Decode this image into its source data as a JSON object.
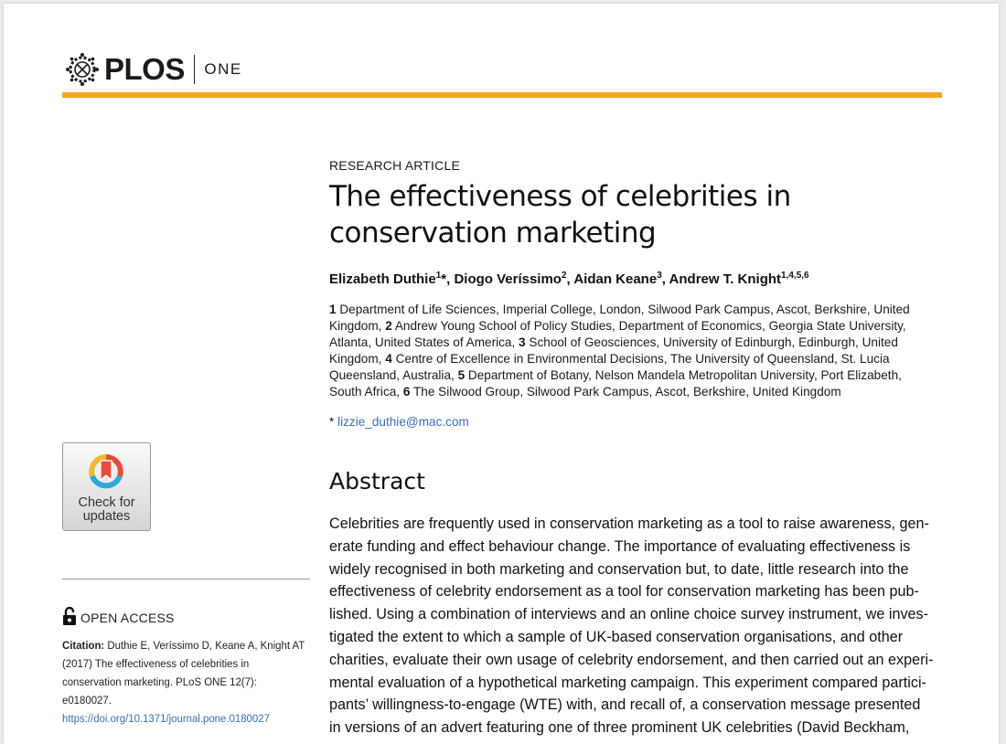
{
  "header": {
    "brand": "PLOS",
    "journal": "ONE",
    "accent_color": "#f5a623"
  },
  "article": {
    "type": "RESEARCH ARTICLE",
    "title_line1": "The effectiveness of celebrities in",
    "title_line2": "conservation marketing",
    "authors": [
      {
        "name": "Elizabeth Duthie",
        "sup": "1",
        "mark": "*"
      },
      {
        "name": "Diogo Veríssimo",
        "sup": "2"
      },
      {
        "name": "Aidan Keane",
        "sup": "3"
      },
      {
        "name": "Andrew T. Knight",
        "sup": "1,4,5,6"
      }
    ],
    "affiliations": [
      {
        "num": "1",
        "text": "Department of Life Sciences, Imperial College, London, Silwood Park Campus, Ascot, Berkshire, United Kingdom,"
      },
      {
        "num": "2",
        "text": "Andrew Young School of Policy Studies, Department of Economics, Georgia State University, Atlanta, United States of America,"
      },
      {
        "num": "3",
        "text": "School of Geosciences, University of Edinburgh, Edinburgh, United Kingdom,"
      },
      {
        "num": "4",
        "text": "Centre of Excellence in Environmental Decisions, The University of Queensland, St. Lucia Queensland, Australia,"
      },
      {
        "num": "5",
        "text": "Department of Botany, Nelson Mandela Metropolitan University, Port Elizabeth, South Africa,"
      },
      {
        "num": "6",
        "text": "The Silwood Group, Silwood Park Campus, Ascot, Berkshire, United Kingdom"
      }
    ],
    "email_mark": "*",
    "email": "lizzie_duthie@mac.com"
  },
  "abstract": {
    "heading": "Abstract",
    "lines": [
      "Celebrities are frequently used in conservation marketing as a tool to raise awareness, gen-",
      "erate funding and effect behaviour change. The importance of evaluating effectiveness is",
      "widely recognised in both marketing and conservation but, to date, little research into the",
      "effectiveness of celebrity endorsement as a tool for conservation marketing has been pub-",
      "lished. Using a combination of interviews and an online choice survey instrument, we inves-",
      "tigated the extent to which a sample of UK-based conservation organisations, and other",
      "charities, evaluate their own usage of celebrity endorsement, and then carried out an experi-",
      "mental evaluation of a hypothetical marketing campaign. This experiment compared partici-",
      "pants’ willingness-to-engage (WTE) with, and recall of, a conservation message presented",
      "in versions of an advert featuring one of three prominent UK celebrities (David Beckham,"
    ]
  },
  "sidebar": {
    "check_line1": "Check for",
    "check_line2": "updates",
    "open_access": "OPEN ACCESS",
    "citation_label": "Citation:",
    "citation_text": "Duthie E, Veríssimo D, Keane A, Knight AT (2017) The effectiveness of celebrities in conservation marketing. PLoS ONE 12(7): e0180027.",
    "citation_link": "https://doi.org/10.1371/journal.pone.0180027"
  }
}
